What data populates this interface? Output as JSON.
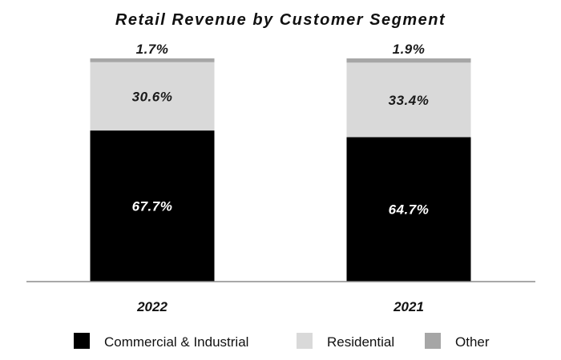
{
  "chart_data": {
    "type": "bar",
    "stacked": true,
    "title": "Retail Revenue by Customer Segment",
    "categories": [
      "2022",
      "2021"
    ],
    "series": [
      {
        "name": "Commercial & Industrial",
        "values": [
          67.7,
          64.7
        ],
        "labels": [
          "67.7%",
          "64.7%"
        ],
        "color": "#000000",
        "label_color": "#ffffff"
      },
      {
        "name": "Residential",
        "values": [
          30.6,
          33.4
        ],
        "labels": [
          "30.6%",
          "33.4%"
        ],
        "color": "#d9d9d9",
        "label_color": "#1a1a1a"
      },
      {
        "name": "Other",
        "values": [
          1.7,
          1.9
        ],
        "labels": [
          "1.7%",
          "1.9%"
        ],
        "color": "#a6a6a6",
        "label_color": "#1a1a1a"
      }
    ],
    "ylim": [
      0,
      100
    ],
    "xlabel": "",
    "ylabel": "",
    "legend_position": "bottom",
    "grid": false
  }
}
